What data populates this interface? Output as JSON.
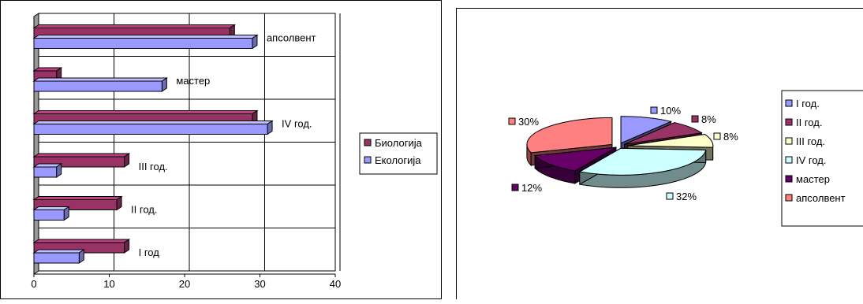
{
  "chart_data": [
    {
      "type": "bar",
      "orientation": "horizontal",
      "categories": [
        "I год",
        "II год.",
        "III год.",
        "IV год.",
        "мастер",
        "апсолвент"
      ],
      "series": [
        {
          "name": "Биологија",
          "values": [
            12,
            11,
            12,
            29,
            3,
            26
          ],
          "color": "#993366"
        },
        {
          "name": "Екологија",
          "values": [
            6,
            4,
            3,
            31,
            17,
            29
          ],
          "color": "#9999ff"
        }
      ],
      "xlim": [
        0,
        40
      ],
      "xticks": [
        "0",
        "10",
        "20",
        "30",
        "40"
      ],
      "grid": true,
      "legend": "right"
    },
    {
      "type": "pie",
      "style": "3d-exploded",
      "labels": [
        "I год.",
        "II год.",
        "III год.",
        "IV год.",
        "мастер",
        "апсолвент"
      ],
      "values": [
        10,
        8,
        8,
        32,
        12,
        30
      ],
      "value_labels": [
        "10%",
        "8%",
        "8%",
        "32%",
        "12%",
        "30%"
      ],
      "colors": [
        "#9999ff",
        "#993366",
        "#ffffcc",
        "#ccffff",
        "#660066",
        "#ff8080"
      ],
      "legend": "right"
    }
  ]
}
